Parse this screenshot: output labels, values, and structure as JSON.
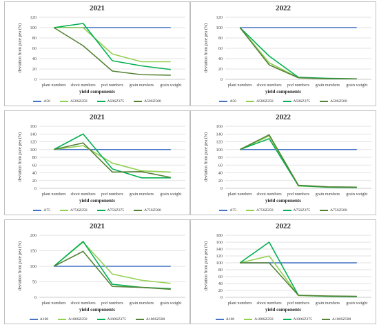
{
  "chart_data": [
    {
      "type": "line",
      "title": "2021",
      "xlabel": "yield components",
      "ylabel": "deviation from pure pea (%)",
      "categories": [
        "plant numbers",
        "shoot numbers",
        "pod numbers",
        "grain numbers",
        "grain weight"
      ],
      "ylim": [
        0,
        120
      ],
      "yticks": [
        0,
        20,
        40,
        60,
        80,
        100,
        120
      ],
      "legend": "bottom",
      "series": [
        {
          "name": "A50",
          "color": "#4472c4",
          "values": [
            100,
            100,
            100,
            100,
            100
          ]
        },
        {
          "name": "A50SZ250",
          "color": "#92d050",
          "values": [
            100,
            100,
            49,
            34,
            34
          ]
        },
        {
          "name": "A50SZ375",
          "color": "#00b050",
          "values": [
            100,
            108,
            36,
            26,
            19
          ]
        },
        {
          "name": "A50SZ500",
          "color": "#548235",
          "values": [
            100,
            65,
            16,
            9,
            8
          ]
        }
      ]
    },
    {
      "type": "line",
      "title": "2022",
      "xlabel": "yield components",
      "ylabel": "deviation from pure pea (%)",
      "categories": [
        "plant numbers",
        "shoot numbers",
        "pod numbers",
        "grain numbers",
        "grain weight"
      ],
      "ylim": [
        0,
        120
      ],
      "yticks": [
        0,
        20,
        40,
        60,
        80,
        100,
        120
      ],
      "legend": "bottom",
      "series": [
        {
          "name": "A50",
          "color": "#4472c4",
          "values": [
            100,
            100,
            100,
            100,
            100
          ]
        },
        {
          "name": "A50SZ250",
          "color": "#92d050",
          "values": [
            100,
            32,
            3,
            1,
            1
          ]
        },
        {
          "name": "A50SZ375",
          "color": "#00b050",
          "values": [
            100,
            45,
            4,
            2,
            1
          ]
        },
        {
          "name": "A50SZ500",
          "color": "#548235",
          "values": [
            100,
            28,
            3,
            1,
            1
          ]
        }
      ]
    },
    {
      "type": "line",
      "title": "2021",
      "xlabel": "yield components",
      "ylabel": "deviation from pure pea (%)",
      "categories": [
        "plant numbers",
        "shoot numbers",
        "pod numbers",
        "grain numbers",
        "grain weight"
      ],
      "ylim": [
        0,
        160
      ],
      "yticks": [
        0,
        20,
        40,
        60,
        80,
        100,
        120,
        140,
        160
      ],
      "legend": "bottom",
      "series": [
        {
          "name": "A75",
          "color": "#4472c4",
          "values": [
            100,
            100,
            100,
            100,
            100
          ]
        },
        {
          "name": "A75SZ250",
          "color": "#92d050",
          "values": [
            100,
            110,
            65,
            45,
            42
          ]
        },
        {
          "name": "A75SZ375",
          "color": "#00b050",
          "values": [
            100,
            140,
            50,
            27,
            27
          ]
        },
        {
          "name": "A75SZ500",
          "color": "#548235",
          "values": [
            100,
            117,
            42,
            43,
            28
          ]
        }
      ]
    },
    {
      "type": "line",
      "title": "2022",
      "xlabel": "yield components",
      "ylabel": "deviation from pure pea (%)",
      "categories": [
        "plant numbers",
        "shoot numbers",
        "pod numbers",
        "grain numbers",
        "grain weight"
      ],
      "ylim": [
        0,
        160
      ],
      "yticks": [
        0,
        20,
        40,
        60,
        80,
        100,
        120,
        140,
        160
      ],
      "legend": "bottom",
      "series": [
        {
          "name": "A75",
          "color": "#4472c4",
          "values": [
            100,
            100,
            100,
            100,
            100
          ]
        },
        {
          "name": "A75SZ250",
          "color": "#92d050",
          "values": [
            100,
            135,
            6,
            3,
            2
          ]
        },
        {
          "name": "A75SZ375",
          "color": "#00b050",
          "values": [
            100,
            128,
            7,
            3,
            2
          ]
        },
        {
          "name": "A75SZ500",
          "color": "#548235",
          "values": [
            100,
            138,
            8,
            4,
            3
          ]
        }
      ]
    },
    {
      "type": "line",
      "title": "2021",
      "xlabel": "yield components",
      "ylabel": "deviation from pure pea (%)",
      "categories": [
        "plant numbers",
        "shoot numbers",
        "pod numbers",
        "grain numbers",
        "grain weight"
      ],
      "ylim": [
        0,
        200
      ],
      "yticks": [
        0,
        50,
        100,
        150,
        200
      ],
      "legend": "bottom",
      "series": [
        {
          "name": "A100",
          "color": "#4472c4",
          "values": [
            100,
            100,
            100,
            100,
            100
          ]
        },
        {
          "name": "A100SZ250",
          "color": "#92d050",
          "values": [
            100,
            178,
            75,
            55,
            45
          ]
        },
        {
          "name": "A100SZ375",
          "color": "#00b050",
          "values": [
            100,
            180,
            42,
            32,
            28
          ]
        },
        {
          "name": "A100SZ500",
          "color": "#548235",
          "values": [
            100,
            148,
            35,
            32,
            26
          ]
        }
      ]
    },
    {
      "type": "line",
      "title": "2022",
      "xlabel": "yield components",
      "ylabel": "deviation from pure pea (%)",
      "categories": [
        "plant numbers",
        "shoot numbers",
        "pod numbers",
        "grain numbers",
        "grain weight"
      ],
      "ylim": [
        0,
        180
      ],
      "yticks": [
        0,
        20,
        40,
        60,
        80,
        100,
        120,
        140,
        160,
        180
      ],
      "legend": "bottom",
      "series": [
        {
          "name": "A100",
          "color": "#4472c4",
          "values": [
            100,
            100,
            100,
            100,
            100
          ]
        },
        {
          "name": "A100SZ250",
          "color": "#92d050",
          "values": [
            100,
            120,
            5,
            3,
            2
          ]
        },
        {
          "name": "A100SZ375",
          "color": "#00b050",
          "values": [
            100,
            160,
            6,
            3,
            2
          ]
        },
        {
          "name": "A100SZ500",
          "color": "#548235",
          "values": [
            100,
            100,
            6,
            4,
            3
          ]
        }
      ]
    }
  ]
}
